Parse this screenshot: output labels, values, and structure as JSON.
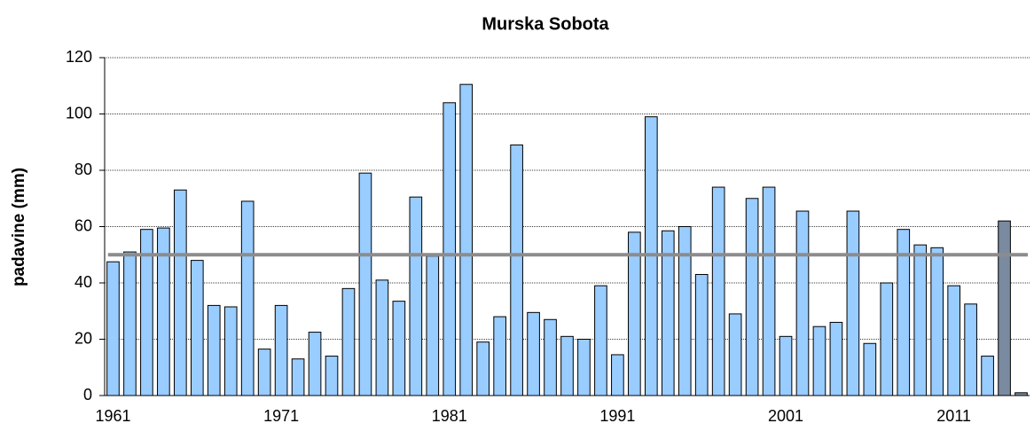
{
  "chart_data": {
    "type": "bar",
    "title": "Murska Sobota",
    "y_label": "padavine (mm)",
    "categories": [
      "1961",
      null,
      null,
      null,
      null,
      null,
      null,
      null,
      null,
      null,
      "1971",
      null,
      null,
      null,
      null,
      null,
      null,
      null,
      null,
      null,
      "1981",
      null,
      null,
      null,
      null,
      null,
      null,
      null,
      null,
      null,
      "1991",
      null,
      null,
      null,
      null,
      null,
      null,
      null,
      null,
      null,
      "2001",
      null,
      null,
      null,
      null,
      null,
      null,
      null,
      null,
      null,
      "2011",
      null,
      null,
      null,
      null
    ],
    "values": [
      47.5,
      51,
      59,
      59.5,
      73,
      48,
      32,
      31.5,
      69,
      16.5,
      32,
      13,
      22.5,
      14,
      38,
      79,
      41,
      33.5,
      70.5,
      49.5,
      104,
      110.5,
      19,
      28,
      89,
      29.5,
      27,
      21,
      20,
      39,
      14.5,
      58,
      99,
      58.5,
      60,
      43,
      74,
      29,
      70,
      74,
      21,
      65.5,
      24.5,
      26,
      65.5,
      18.5,
      40,
      59,
      53.5,
      52.5,
      39,
      32.5,
      14,
      62,
      1
    ],
    "colors": [
      "#99ccff",
      "#99ccff",
      "#99ccff",
      "#99ccff",
      "#99ccff",
      "#99ccff",
      "#99ccff",
      "#99ccff",
      "#99ccff",
      "#99ccff",
      "#99ccff",
      "#99ccff",
      "#99ccff",
      "#99ccff",
      "#99ccff",
      "#99ccff",
      "#99ccff",
      "#99ccff",
      "#99ccff",
      "#99ccff",
      "#99ccff",
      "#99ccff",
      "#99ccff",
      "#99ccff",
      "#99ccff",
      "#99ccff",
      "#99ccff",
      "#99ccff",
      "#99ccff",
      "#99ccff",
      "#99ccff",
      "#99ccff",
      "#99ccff",
      "#99ccff",
      "#99ccff",
      "#99ccff",
      "#99ccff",
      "#99ccff",
      "#99ccff",
      "#99ccff",
      "#99ccff",
      "#99ccff",
      "#99ccff",
      "#99ccff",
      "#99ccff",
      "#99ccff",
      "#99ccff",
      "#99ccff",
      "#99ccff",
      "#99ccff",
      "#99ccff",
      "#99ccff",
      "#99ccff",
      "#7a8aa0",
      "#7a8aa0"
    ],
    "reference_line": 50,
    "reference_color": "#8c8c8c",
    "ylim": [
      0,
      120
    ],
    "yticks": [
      0,
      20,
      40,
      60,
      80,
      100,
      120
    ],
    "grid": true
  }
}
